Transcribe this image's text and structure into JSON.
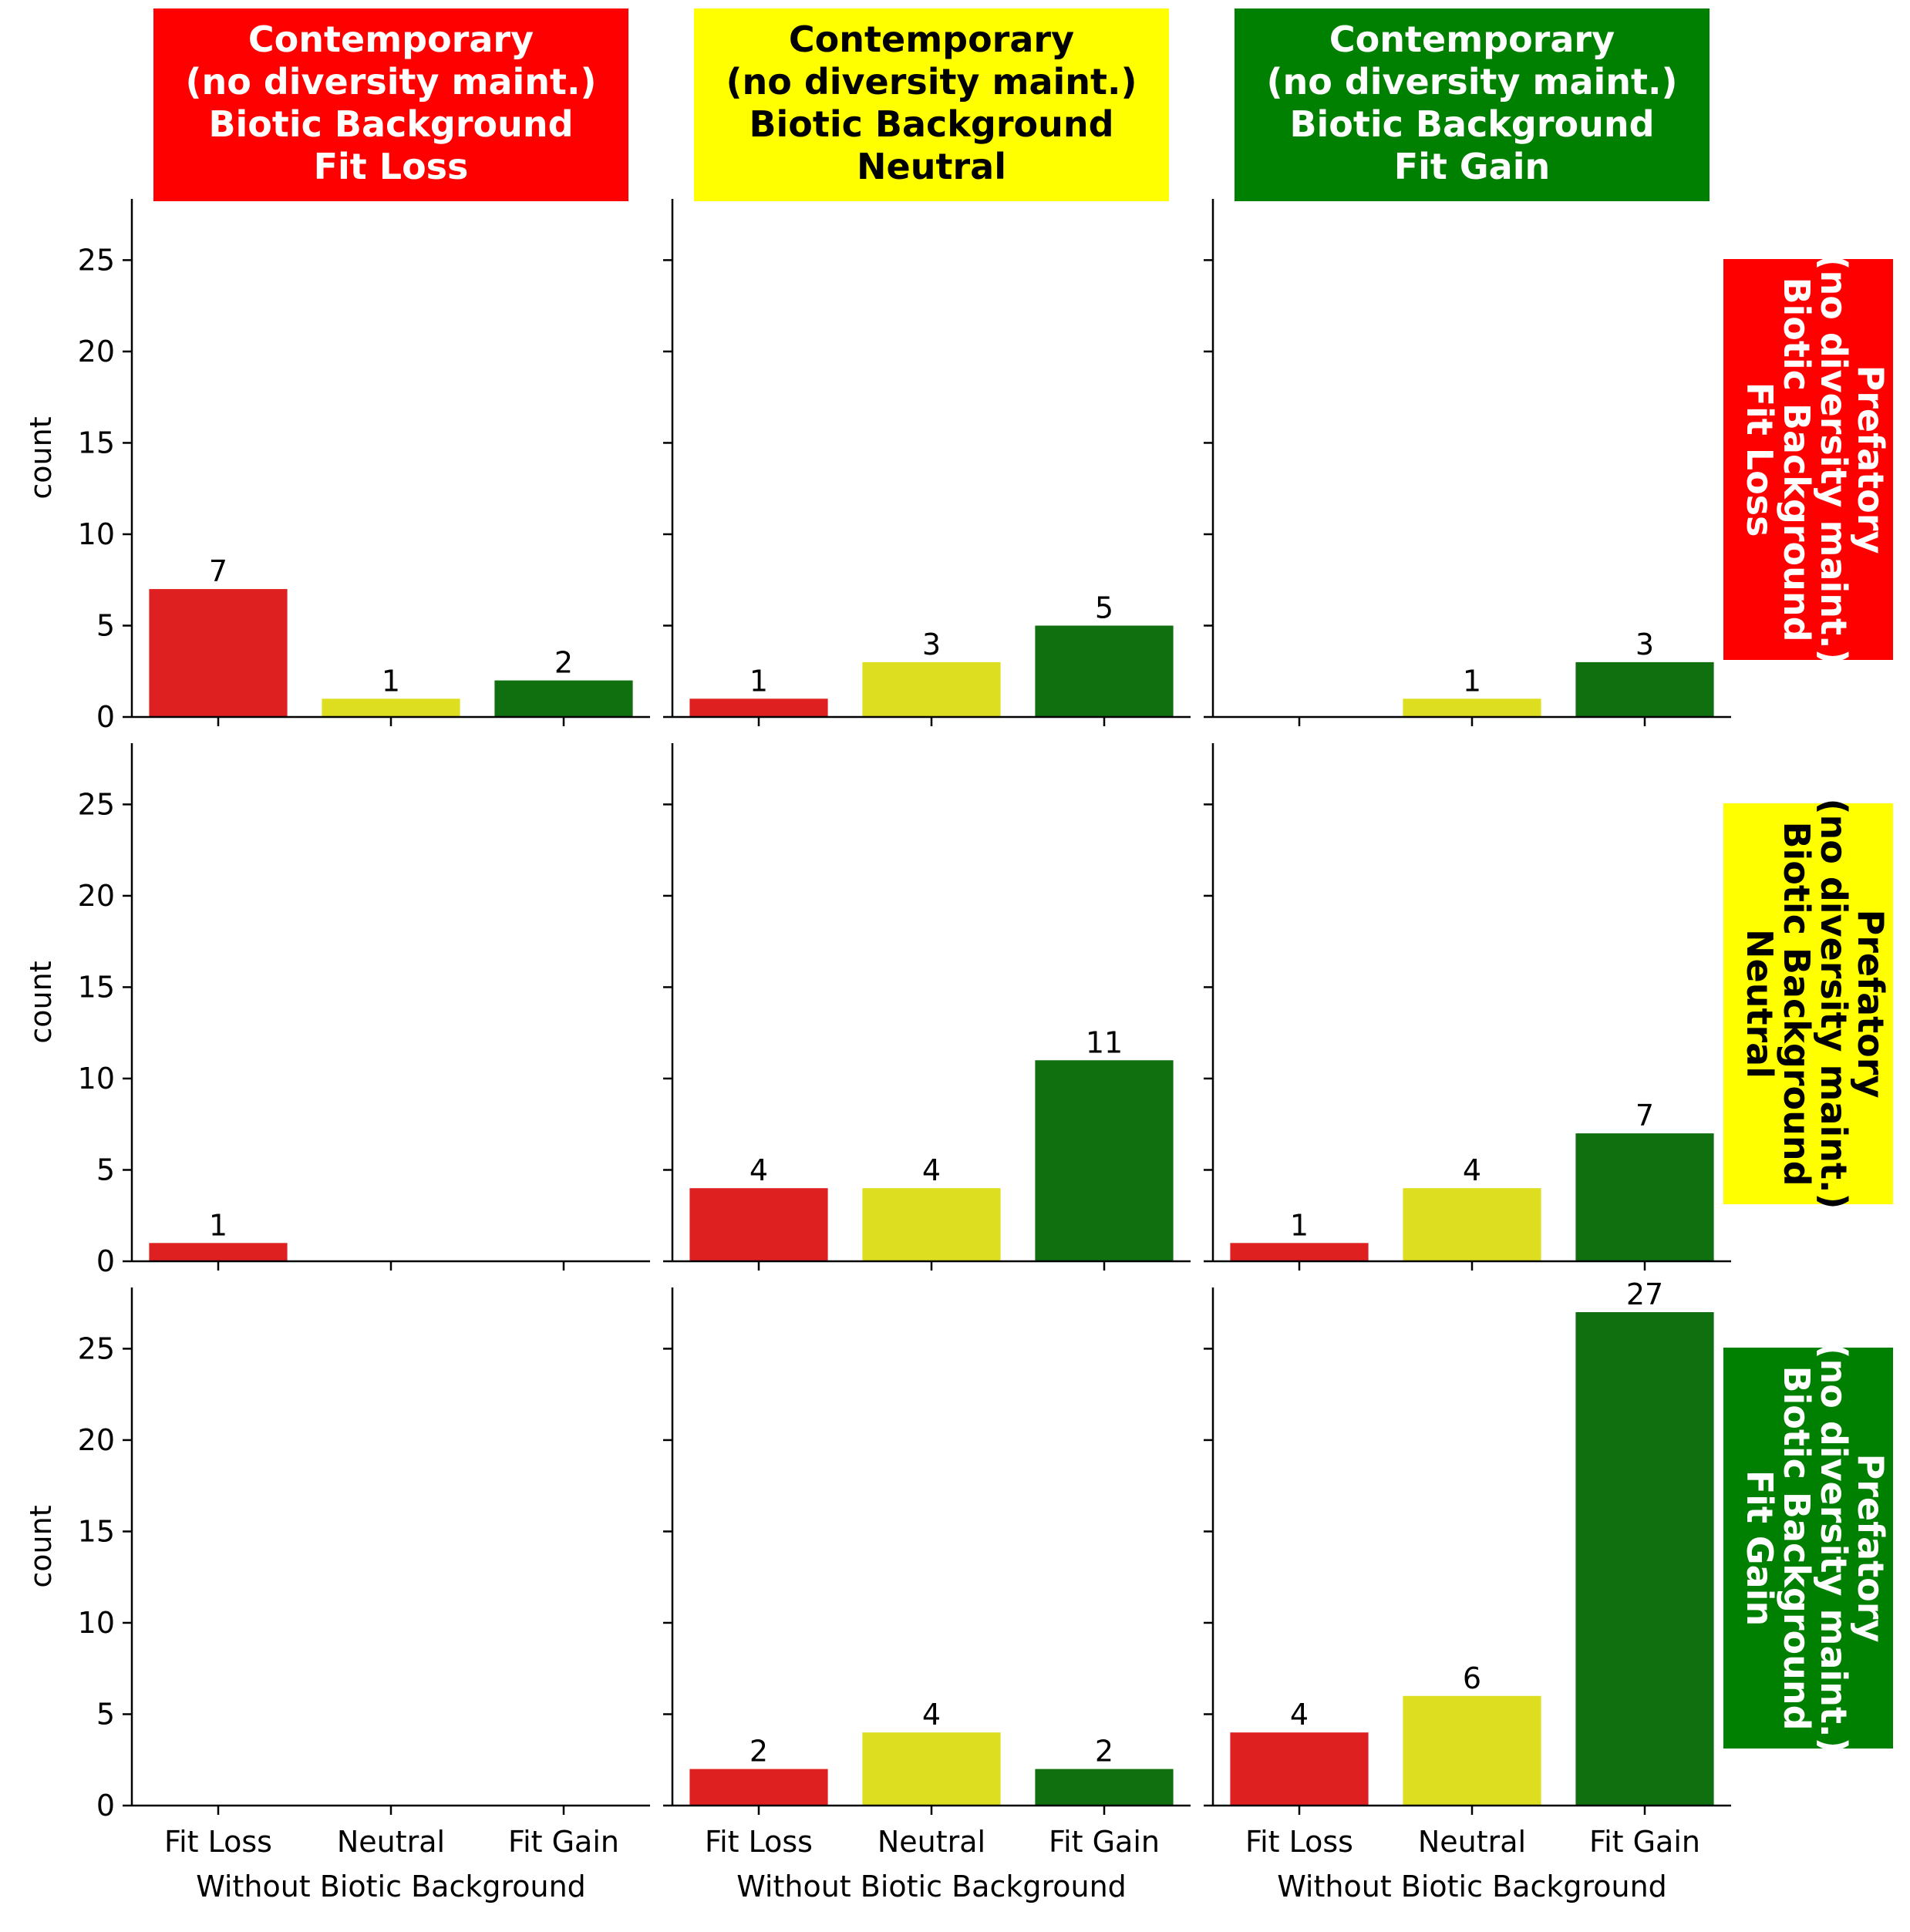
{
  "chart_data": {
    "type": "bar",
    "layout": "facet-grid 3x3",
    "ylabel": "count",
    "xlabel": "Without Biotic Background",
    "ylim": [
      0,
      28.35
    ],
    "yticks": [
      0,
      5,
      10,
      15,
      20,
      25
    ],
    "categories": [
      "Fit Loss",
      "Neutral",
      "Fit Gain"
    ],
    "colors": {
      "Fit Loss": "#de2020",
      "Neutral": "#dede20",
      "Fit Gain": "#107010"
    },
    "columns": [
      {
        "lines": [
          "Contemporary",
          "(no diversity maint.)",
          "Biotic Background",
          "Fit Loss"
        ],
        "bg": "#ff0000",
        "fg": "#ffffff"
      },
      {
        "lines": [
          "Contemporary",
          "(no diversity maint.)",
          "Biotic Background",
          "Neutral"
        ],
        "bg": "#ffff00",
        "fg": "#000000"
      },
      {
        "lines": [
          "Contemporary",
          "(no diversity maint.)",
          "Biotic Background",
          "Fit Gain"
        ],
        "bg": "#008000",
        "fg": "#ffffff"
      }
    ],
    "rows": [
      {
        "lines": [
          "Prefatory",
          "(no diversity maint.)",
          "Biotic Background",
          "Fit Loss"
        ],
        "bg": "#ff0000",
        "fg": "#ffffff"
      },
      {
        "lines": [
          "Prefatory",
          "(no diversity maint.)",
          "Biotic Background",
          "Neutral"
        ],
        "bg": "#ffff00",
        "fg": "#000000"
      },
      {
        "lines": [
          "Prefatory",
          "(no diversity maint.)",
          "Biotic Background",
          "Fit Gain"
        ],
        "bg": "#008000",
        "fg": "#ffffff"
      }
    ],
    "panels": [
      [
        [
          7,
          1,
          2
        ],
        [
          1,
          3,
          5
        ],
        [
          0,
          1,
          3
        ]
      ],
      [
        [
          1,
          0,
          0
        ],
        [
          4,
          4,
          11
        ],
        [
          1,
          4,
          7
        ]
      ],
      [
        [
          0,
          0,
          0
        ],
        [
          2,
          4,
          2
        ],
        [
          4,
          6,
          27
        ]
      ]
    ]
  }
}
